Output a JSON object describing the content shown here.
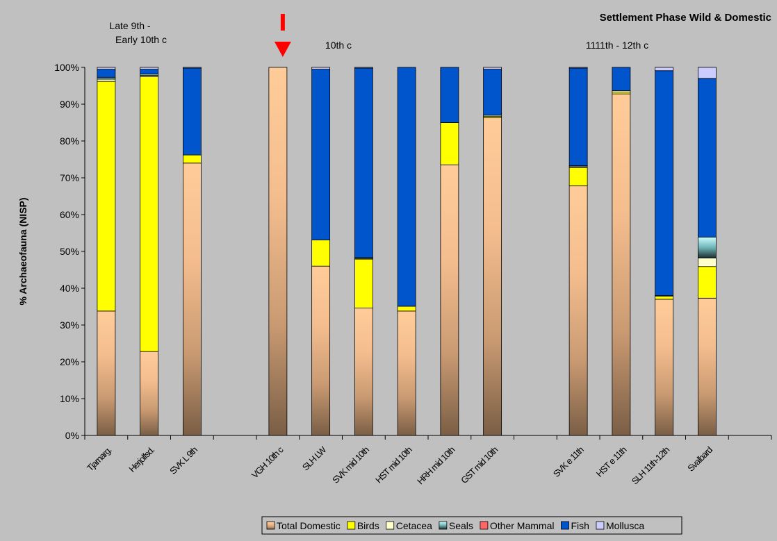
{
  "chart_data": {
    "type": "bar",
    "stacked": true,
    "title": "Settlement Phase Wild & Domestic",
    "ylabel": "% Archaeofauna (NISP)",
    "ylim": [
      0,
      100
    ],
    "yticks": [
      "0%",
      "10%",
      "20%",
      "30%",
      "40%",
      "50%",
      "60%",
      "70%",
      "80%",
      "90%",
      "100%"
    ],
    "grid": false,
    "legend_position": "bottom",
    "period_labels": [
      {
        "lines": [
          "Late 9th -",
          "Early 10th c"
        ]
      },
      {
        "lines": [
          "10th c"
        ]
      },
      {
        "lines": [
          "1111th - 12th c"
        ]
      }
    ],
    "marker": {
      "type": "arrow",
      "at_category": "VGH 10th c",
      "color": "#ff0000"
    },
    "slots": 16,
    "categories": [
      {
        "label": "Tjarnarg.",
        "slot": 0
      },
      {
        "label": "Herjolfsd.",
        "slot": 1
      },
      {
        "label": "SVK L 9th",
        "slot": 2
      },
      {
        "label": "VGH 10th c",
        "slot": 4
      },
      {
        "label": "SLH LW",
        "slot": 5
      },
      {
        "label": "SVK mid 10th",
        "slot": 6
      },
      {
        "label": "HST mid 10th",
        "slot": 7
      },
      {
        "label": "HRH mid 10th",
        "slot": 8
      },
      {
        "label": "GST mid 10th",
        "slot": 9
      },
      {
        "label": "SVK e 11th",
        "slot": 11
      },
      {
        "label": "HST e 11th",
        "slot": 12
      },
      {
        "label": "SLH 11th-12th",
        "slot": 13
      },
      {
        "label": "Svalbard",
        "slot": 14
      }
    ],
    "series": [
      {
        "name": "Total Domestic",
        "color": "#f4c49a",
        "values": [
          33.8,
          22.8,
          74.0,
          100.0,
          46.0,
          34.6,
          33.8,
          73.5,
          86.3,
          67.8,
          92.8,
          37.0,
          37.3
        ]
      },
      {
        "name": "Birds",
        "color": "#ffff00",
        "values": [
          62.4,
          74.7,
          2.2,
          0.0,
          7.1,
          13.3,
          1.3,
          11.5,
          0.4,
          5.0,
          0.5,
          0.8,
          8.6
        ]
      },
      {
        "name": "Cetacea",
        "color": "#ffffcc",
        "values": [
          0.6,
          0.3,
          0.0,
          0.0,
          0.0,
          0.2,
          0.0,
          0.0,
          0.3,
          0.2,
          0.4,
          0.2,
          2.3
        ]
      },
      {
        "name": "Seals",
        "color": "#66ccd4",
        "values": [
          0.5,
          0.4,
          0.0,
          0.0,
          0.0,
          0.2,
          0.0,
          0.0,
          0.0,
          0.3,
          0.0,
          0.0,
          5.7
        ]
      },
      {
        "name": "Other Mammal",
        "color": "#ff6666",
        "values": [
          0.0,
          0.0,
          0.0,
          0.0,
          0.0,
          0.0,
          0.0,
          0.0,
          0.0,
          0.0,
          0.0,
          0.0,
          0.0
        ]
      },
      {
        "name": "Fish",
        "color": "#0055cc",
        "values": [
          2.2,
          1.3,
          23.6,
          0.0,
          46.4,
          51.5,
          64.9,
          15.0,
          12.5,
          26.5,
          6.3,
          61.1,
          43.1
        ]
      },
      {
        "name": "Mollusca",
        "color": "#ccccff",
        "values": [
          0.5,
          0.5,
          0.2,
          0.0,
          0.5,
          0.2,
          0.0,
          0.0,
          0.5,
          0.2,
          0.0,
          0.9,
          3.0
        ]
      }
    ]
  }
}
